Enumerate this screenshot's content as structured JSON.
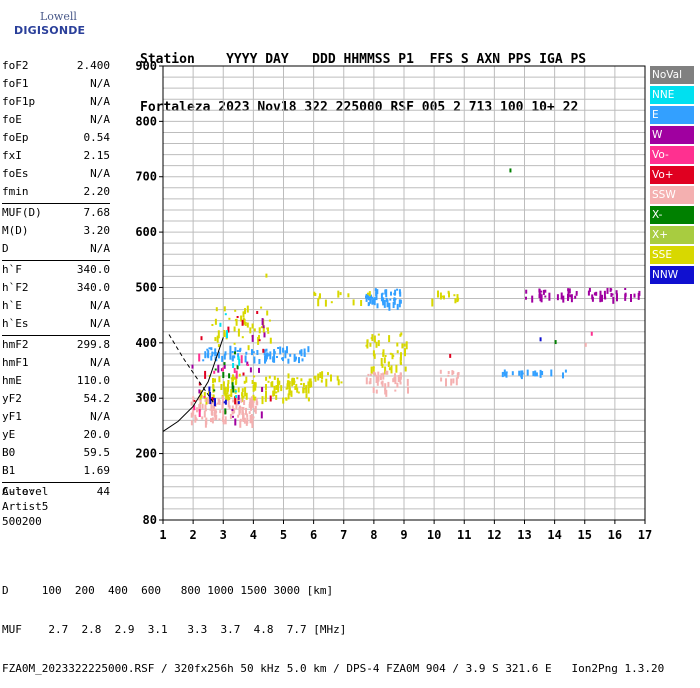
{
  "logo": {
    "line1": "Lowell",
    "line2": "DIGISONDE"
  },
  "header": {
    "line1": "Station    YYYY DAY   DDD HHMMSS P1  FFS S AXN PPS IGA PS",
    "line2": "Fortaleza 2023 Nov18 322 225000 RSF 005 2 713 100 10+ 22"
  },
  "params": {
    "g1": [
      {
        "label": "foF2",
        "value": "2.400"
      },
      {
        "label": "foF1",
        "value": "N/A"
      },
      {
        "label": "foF1p",
        "value": "N/A"
      },
      {
        "label": "foE",
        "value": "N/A"
      },
      {
        "label": "foEp",
        "value": "0.54"
      },
      {
        "label": "fxI",
        "value": "2.15"
      },
      {
        "label": "foEs",
        "value": "N/A"
      },
      {
        "label": "fmin",
        "value": "2.20"
      }
    ],
    "g2": [
      {
        "label": "MUF(D)",
        "value": "7.68"
      },
      {
        "label": "M(D)",
        "value": "3.20"
      },
      {
        "label": "D",
        "value": "N/A"
      }
    ],
    "g3": [
      {
        "label": "h`F",
        "value": "340.0"
      },
      {
        "label": "h`F2",
        "value": "340.0"
      },
      {
        "label": "h`E",
        "value": "N/A"
      },
      {
        "label": "h`Es",
        "value": "N/A"
      }
    ],
    "g4": [
      {
        "label": "hmF2",
        "value": "299.8"
      },
      {
        "label": "hmF1",
        "value": "N/A"
      },
      {
        "label": "hmE",
        "value": "110.0"
      },
      {
        "label": "yF2",
        "value": "54.2"
      },
      {
        "label": "yF1",
        "value": "N/A"
      },
      {
        "label": "yE",
        "value": "20.0"
      },
      {
        "label": "B0",
        "value": "59.5"
      },
      {
        "label": "B1",
        "value": "1.69"
      }
    ],
    "g5": [
      {
        "label": "C-level",
        "value": "44"
      }
    ]
  },
  "auto": {
    "line1": "Auto:",
    "line2": "Artist5",
    "line3": "500200"
  },
  "legend": [
    {
      "label": "NoVal",
      "color": "#808080"
    },
    {
      "label": "NNE",
      "color": "#00e0f0"
    },
    {
      "label": "E",
      "color": "#33a0ff"
    },
    {
      "label": "W",
      "color": "#a000a0"
    },
    {
      "label": "Vo-",
      "color": "#ff3090"
    },
    {
      "label": "Vo+",
      "color": "#e00020"
    },
    {
      "label": "SSW",
      "color": "#f4b0b0"
    },
    {
      "label": "X-",
      "color": "#008000"
    },
    {
      "label": "X+",
      "color": "#a8cc40"
    },
    {
      "label": "SSE",
      "color": "#d8d800"
    },
    {
      "label": "NNW",
      "color": "#1010d0"
    }
  ],
  "footer": {
    "line1": "D     100  200  400  600   800 1000 1500 3000 [km]",
    "line2": "MUF    2.7  2.8  2.9  3.1   3.3  3.7  4.8  7.7 [MHz]",
    "line3": "FZA0M_2023322225000.RSF / 320fx256h 50 kHz 5.0 km / DPS-4 FZA0M 904 / 3.9 S 321.6 E   Ion2Png 1.3.20"
  },
  "chart_data": {
    "type": "scatter",
    "xlim": [
      1,
      17
    ],
    "ylim": [
      80,
      900
    ],
    "x_ticks": [
      1,
      2,
      3,
      4,
      5,
      6,
      7,
      8,
      9,
      10,
      11,
      12,
      13,
      14,
      15,
      16,
      17
    ],
    "y_ticks": [
      80,
      200,
      300,
      400,
      500,
      600,
      700,
      800,
      900
    ],
    "grid": true,
    "legend_position": "right",
    "clusters": [
      {
        "color": "#d8d800",
        "x": [
          2.2,
          5.9
        ],
        "y": [
          300,
          345
        ],
        "n": 130
      },
      {
        "color": "#f4b0b0",
        "x": [
          1.9,
          4.1
        ],
        "y": [
          260,
          305
        ],
        "n": 110
      },
      {
        "color": "#33a0ff",
        "x": [
          2.3,
          5.9
        ],
        "y": [
          370,
          395
        ],
        "n": 70
      },
      {
        "color": "#d8d800",
        "x": [
          2.6,
          4.6
        ],
        "y": [
          395,
          470
        ],
        "n": 45
      },
      {
        "color": "#33a0ff",
        "x": [
          7.7,
          8.9
        ],
        "y": [
          470,
          500
        ],
        "n": 45
      },
      {
        "color": "#d8d800",
        "x": [
          7.7,
          9.1
        ],
        "y": [
          355,
          420
        ],
        "n": 45
      },
      {
        "color": "#f4b0b0",
        "x": [
          7.7,
          9.1
        ],
        "y": [
          315,
          350
        ],
        "n": 40
      },
      {
        "color": "#a000a0",
        "x": [
          13.0,
          16.8
        ],
        "y": [
          483,
          500
        ],
        "n": 55
      },
      {
        "color": "#d8d800",
        "x": [
          5.9,
          7.9
        ],
        "y": [
          475,
          495
        ],
        "n": 14
      },
      {
        "color": "#d8d800",
        "x": [
          9.8,
          10.8
        ],
        "y": [
          480,
          495
        ],
        "n": 12
      },
      {
        "color": "#f4b0b0",
        "x": [
          10.1,
          10.8
        ],
        "y": [
          335,
          355
        ],
        "n": 14
      },
      {
        "color": "#33a0ff",
        "x": [
          12.2,
          14.5
        ],
        "y": [
          345,
          352
        ],
        "n": 20
      },
      {
        "color": "#d8d800",
        "x": [
          5.0,
          7.2
        ],
        "y": [
          330,
          350
        ],
        "n": 14
      },
      {
        "color": "#a000a0",
        "x": [
          1.9,
          4.6
        ],
        "y": [
          260,
          460
        ],
        "n": 18
      },
      {
        "color": "#e00020",
        "x": [
          1.9,
          4.6
        ],
        "y": [
          260,
          460
        ],
        "n": 14
      },
      {
        "color": "#ff3090",
        "x": [
          2.0,
          4.0
        ],
        "y": [
          270,
          400
        ],
        "n": 10
      },
      {
        "color": "#008000",
        "x": [
          2.2,
          3.6
        ],
        "y": [
          280,
          400
        ],
        "n": 10
      },
      {
        "color": "#1010d0",
        "x": [
          2.4,
          3.6
        ],
        "y": [
          290,
          330
        ],
        "n": 8
      },
      {
        "color": "#00e0f0",
        "x": [
          2.8,
          3.6
        ],
        "y": [
          300,
          460
        ],
        "n": 8
      }
    ],
    "points": [
      {
        "x": 12.5,
        "y": 715,
        "color": "#008000"
      },
      {
        "x": 4.4,
        "y": 525,
        "color": "#d8d800"
      },
      {
        "x": 15.2,
        "y": 420,
        "color": "#ff3090"
      },
      {
        "x": 13.5,
        "y": 410,
        "color": "#1010d0"
      },
      {
        "x": 14.0,
        "y": 405,
        "color": "#008000"
      },
      {
        "x": 10.5,
        "y": 380,
        "color": "#e00020"
      },
      {
        "x": 15.0,
        "y": 400,
        "color": "#f4b0b0"
      }
    ],
    "profile_line": {
      "x": [
        1.0,
        1.5,
        2.0,
        2.5,
        3.0
      ],
      "y": [
        240,
        258,
        285,
        330,
        410
      ]
    },
    "profile_dashed": {
      "x": [
        1.2,
        1.7,
        2.2,
        2.7
      ],
      "y": [
        415,
        370,
        330,
        290
      ]
    }
  }
}
